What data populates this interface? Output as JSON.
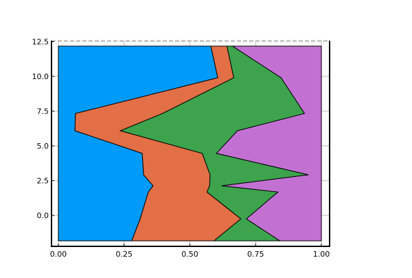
{
  "chart_data": {
    "type": "area",
    "orientation": "horizontal",
    "stacked": true,
    "title": "",
    "xlabel": "",
    "ylabel": "",
    "xlim": [
      0,
      1
    ],
    "ylim": [
      -1.83,
      12.5
    ],
    "grid": true,
    "legend": "none",
    "x_ticks": [
      "0.00",
      "0.25",
      "0.50",
      "0.75",
      "1.00"
    ],
    "x_tick_values": [
      0,
      0.25,
      0.5,
      0.75,
      1.0
    ],
    "y_ticks": [
      "0.0",
      "2.5",
      "5.0",
      "7.5",
      "10.0",
      "12.5"
    ],
    "y_tick_values": [
      0,
      2.5,
      5,
      7.5,
      10,
      12.5
    ],
    "y": [
      12.18,
      9.9,
      7.33,
      6.09,
      4.46,
      2.92,
      2.13,
      1.68,
      -0.25,
      -1.83
    ],
    "series": [
      {
        "color": "#009AFA",
        "values": [
          0.58,
          0.606,
          0.065,
          0.063,
          0.319,
          0.324,
          0.36,
          0.342,
          0.311,
          0.279
        ]
      },
      {
        "color": "#E26F46",
        "values": [
          0.061,
          0.061,
          0.331,
          0.173,
          0.228,
          0.253,
          0.215,
          0.223,
          0.383,
          0.313
        ]
      },
      {
        "color": "#3DA44D",
        "values": [
          0.021,
          0.18,
          0.54,
          0.445,
          0.054,
          0.374,
          0.046,
          0.27,
          0.021,
          0.25
        ]
      },
      {
        "color": "#C271D2",
        "values": [
          0.338,
          0.153,
          0.064,
          0.319,
          0.399,
          0.049,
          0.379,
          0.165,
          0.285,
          0.158
        ]
      }
    ]
  }
}
